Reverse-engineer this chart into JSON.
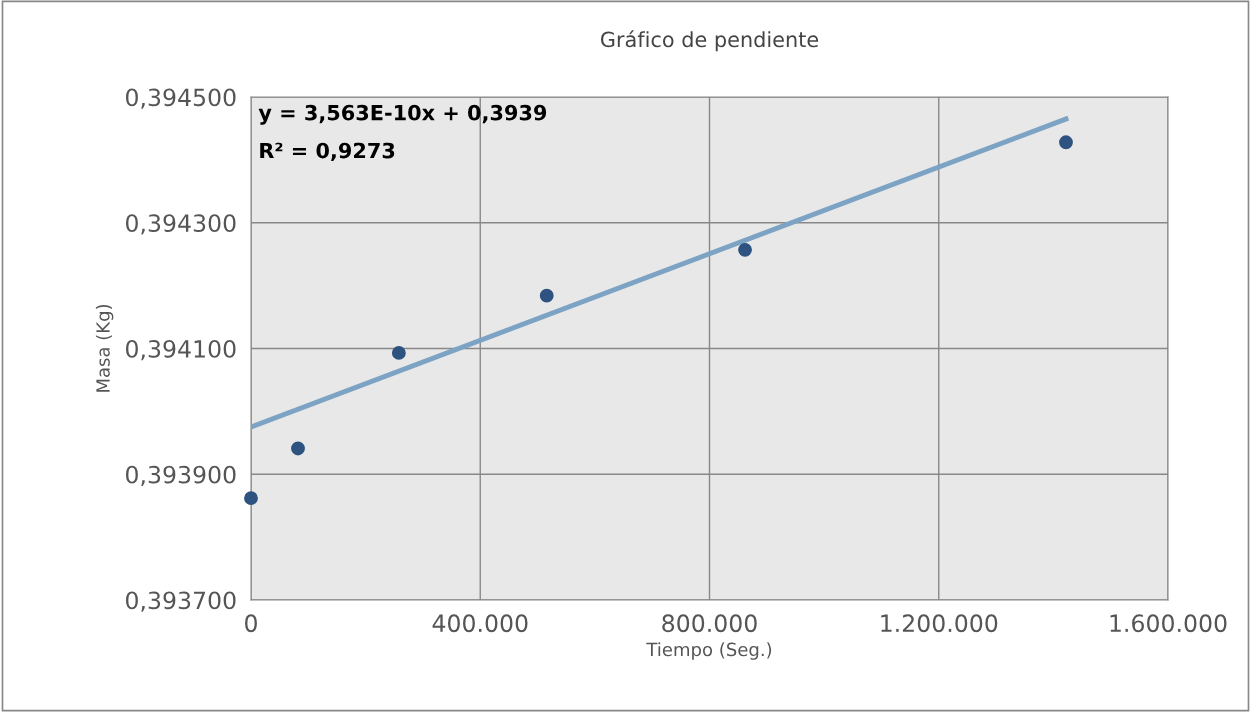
{
  "chart_data": {
    "type": "scatter",
    "title": "Gráfico de pendiente",
    "xlabel": "Tiempo (Seg.)",
    "ylabel": "Masa (Kg)",
    "series": [
      {
        "color": "#2e5380",
        "marker": "circle",
        "x": [
          0,
          82000,
          258000,
          516000,
          862000,
          1422000
        ],
        "values": [
          0.393862,
          0.393941,
          0.394093,
          0.394184,
          0.394257,
          0.394428
        ]
      },
      {
        "type": "line",
        "color": "#7da3c4",
        "marker": "none",
        "line_style": "solid",
        "x": [
          0,
          1422000
        ],
        "values": [
          0.393975,
          0.394465
        ]
      }
    ],
    "annotations": [
      "y = 3,563E-10x + 0,3939",
      "R² = 0,9273"
    ],
    "xlim": [
      0,
      1600000
    ],
    "ylim": [
      0.3937,
      0.3945
    ],
    "xticks": [
      0,
      {
        "value": 400000,
        "label": "400.000"
      },
      {
        "value": 800000,
        "label": "800.000"
      },
      {
        "value": 1200000,
        "label": "1.200.000"
      },
      {
        "value": 1600000,
        "label": "1.600.000"
      }
    ],
    "yticks": [
      {
        "value": 0.3937,
        "label": "0,393700"
      },
      {
        "value": 0.3939,
        "label": "0,393900"
      },
      {
        "value": 0.3941,
        "label": "0,394100"
      },
      {
        "value": 0.3943,
        "label": "0,394300"
      },
      {
        "value": 0.3945,
        "label": "0,394500"
      }
    ],
    "grid": true,
    "legend": false
  }
}
